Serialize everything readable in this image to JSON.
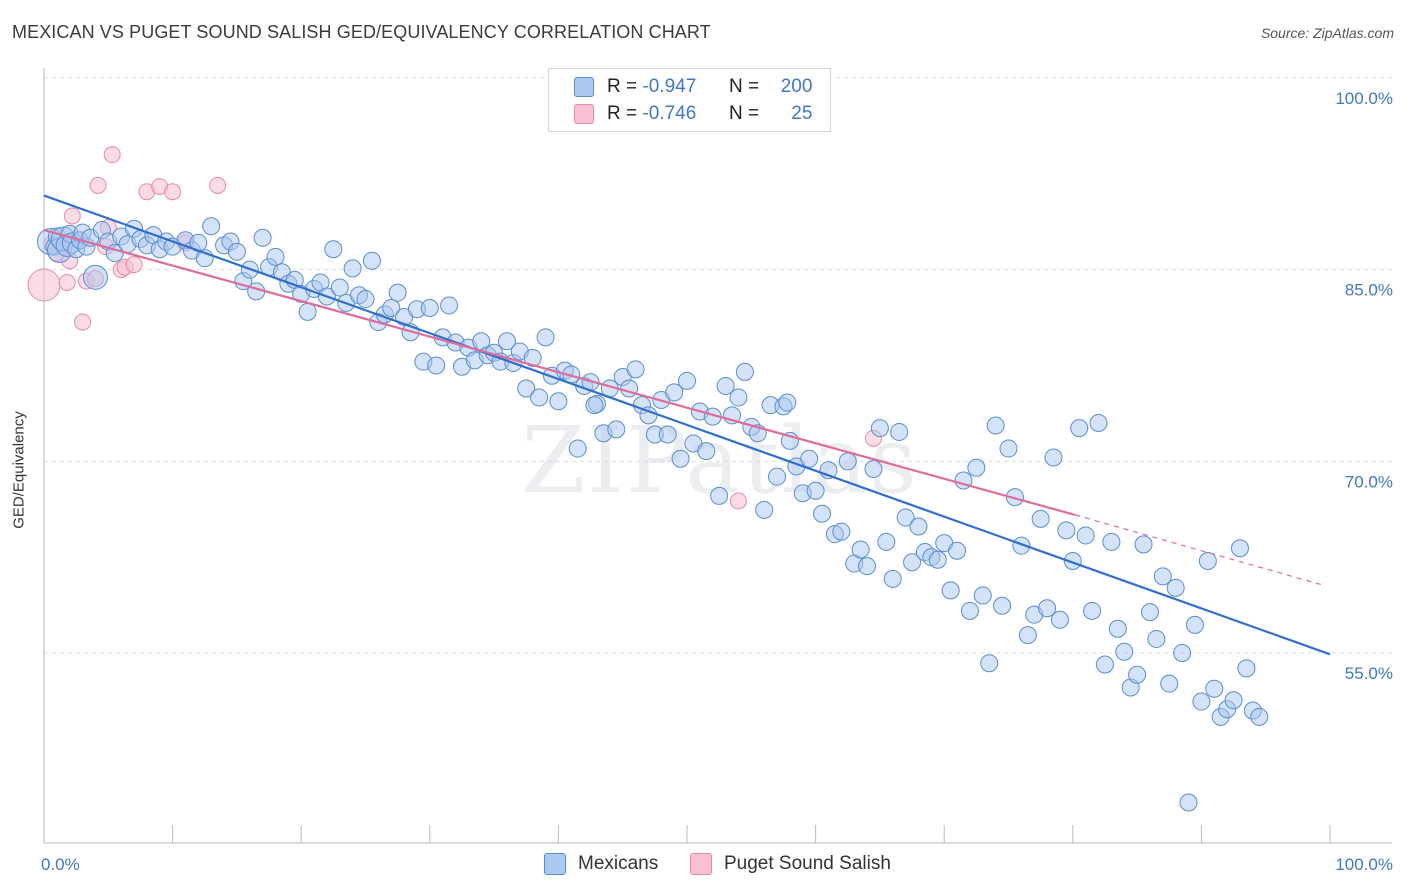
{
  "title": "MEXICAN VS PUGET SOUND SALISH GED/EQUIVALENCY CORRELATION CHART",
  "source": "Source: ZipAtlas.com",
  "watermark": "ZIPatlas",
  "colors": {
    "blue_fill": "#aac8f0",
    "blue_stroke": "#5a8ed6",
    "blue_line": "#2f6fd0",
    "pink_fill": "#f8c0d2",
    "pink_stroke": "#e88aa8",
    "pink_line": "#e06c98",
    "tick_text": "#3f78c8",
    "grid": "#dddddd"
  },
  "legend_top": {
    "rows": [
      {
        "r_label": "R =",
        "r_value": "-0.947",
        "n_label": "N =",
        "n_value": "200",
        "series": "blue"
      },
      {
        "r_label": "R =",
        "r_value": "-0.746",
        "n_label": "N =",
        "n_value": "25",
        "series": "pink"
      }
    ]
  },
  "legend_bottom": {
    "items": [
      {
        "label": "Mexicans",
        "series": "blue"
      },
      {
        "label": "Puget Sound Salish",
        "series": "pink"
      }
    ]
  },
  "chart_data": {
    "type": "scatter",
    "title": "MEXICAN VS PUGET SOUND SALISH GED/EQUIVALENCY CORRELATION CHART",
    "xlabel": "",
    "ylabel": "GED/Equivalency",
    "xlim": [
      0,
      100
    ],
    "ylim": [
      40.5,
      103
    ],
    "x_ticks": [
      {
        "value": 0,
        "label": "0.0%"
      },
      {
        "value": 100,
        "label": "100.0%"
      }
    ],
    "y_ticks": [
      {
        "value": 100,
        "label": "100.0%"
      },
      {
        "value": 85,
        "label": "85.0%"
      },
      {
        "value": 70,
        "label": "70.0%"
      },
      {
        "value": 55,
        "label": "55.0%"
      }
    ],
    "grid": "horizontal dashed",
    "legend_position": "top-center",
    "series": [
      {
        "name": "Mexicans",
        "color": "blue",
        "trend": {
          "x": [
            0,
            100
          ],
          "y": [
            90.8,
            54.9
          ],
          "style": "solid"
        },
        "points": [
          {
            "x": 0.5,
            "y": 87.2
          },
          {
            "x": 0.8,
            "y": 86.8
          },
          {
            "x": 1.0,
            "y": 87.6
          },
          {
            "x": 1.2,
            "y": 86.5
          },
          {
            "x": 1.5,
            "y": 87.4
          },
          {
            "x": 1.8,
            "y": 86.9
          },
          {
            "x": 2.0,
            "y": 87.8
          },
          {
            "x": 2.2,
            "y": 87.1
          },
          {
            "x": 2.5,
            "y": 86.6
          },
          {
            "x": 2.8,
            "y": 87.3
          },
          {
            "x": 3.0,
            "y": 87.9
          },
          {
            "x": 3.3,
            "y": 86.8
          },
          {
            "x": 3.6,
            "y": 87.5
          },
          {
            "x": 4.0,
            "y": 84.4
          },
          {
            "x": 4.5,
            "y": 88.1
          },
          {
            "x": 5.0,
            "y": 87.2
          },
          {
            "x": 5.5,
            "y": 86.3
          },
          {
            "x": 6.0,
            "y": 87.6
          },
          {
            "x": 6.5,
            "y": 87.0
          },
          {
            "x": 7.0,
            "y": 88.2
          },
          {
            "x": 7.5,
            "y": 87.4
          },
          {
            "x": 8.0,
            "y": 86.9
          },
          {
            "x": 8.5,
            "y": 87.7
          },
          {
            "x": 9.0,
            "y": 86.6
          },
          {
            "x": 9.5,
            "y": 87.2
          },
          {
            "x": 10.0,
            "y": 86.8
          },
          {
            "x": 11.0,
            "y": 87.3
          },
          {
            "x": 11.5,
            "y": 86.5
          },
          {
            "x": 12.0,
            "y": 87.1
          },
          {
            "x": 12.5,
            "y": 85.9
          },
          {
            "x": 13.0,
            "y": 88.4
          },
          {
            "x": 14.0,
            "y": 86.9
          },
          {
            "x": 14.5,
            "y": 87.2
          },
          {
            "x": 15.0,
            "y": 86.4
          },
          {
            "x": 15.5,
            "y": 84.1
          },
          {
            "x": 16.0,
            "y": 85.0
          },
          {
            "x": 16.5,
            "y": 83.3
          },
          {
            "x": 17.0,
            "y": 87.5
          },
          {
            "x": 17.5,
            "y": 85.2
          },
          {
            "x": 18.0,
            "y": 86.0
          },
          {
            "x": 18.5,
            "y": 84.8
          },
          {
            "x": 19.0,
            "y": 83.9
          },
          {
            "x": 19.5,
            "y": 84.2
          },
          {
            "x": 20.0,
            "y": 83.1
          },
          {
            "x": 20.5,
            "y": 81.7
          },
          {
            "x": 21.0,
            "y": 83.5
          },
          {
            "x": 21.5,
            "y": 84.0
          },
          {
            "x": 22.0,
            "y": 82.9
          },
          {
            "x": 22.5,
            "y": 86.6
          },
          {
            "x": 23.0,
            "y": 83.6
          },
          {
            "x": 23.5,
            "y": 82.4
          },
          {
            "x": 24.0,
            "y": 85.1
          },
          {
            "x": 24.5,
            "y": 83.0
          },
          {
            "x": 25.0,
            "y": 82.7
          },
          {
            "x": 25.5,
            "y": 85.7
          },
          {
            "x": 26.0,
            "y": 80.9
          },
          {
            "x": 26.5,
            "y": 81.5
          },
          {
            "x": 27.0,
            "y": 82.0
          },
          {
            "x": 27.5,
            "y": 83.2
          },
          {
            "x": 28.0,
            "y": 81.3
          },
          {
            "x": 28.5,
            "y": 80.1
          },
          {
            "x": 29.0,
            "y": 81.9
          },
          {
            "x": 29.5,
            "y": 77.8
          },
          {
            "x": 30.0,
            "y": 82.0
          },
          {
            "x": 30.5,
            "y": 77.5
          },
          {
            "x": 31.0,
            "y": 79.7
          },
          {
            "x": 31.5,
            "y": 82.2
          },
          {
            "x": 32.0,
            "y": 79.3
          },
          {
            "x": 32.5,
            "y": 77.4
          },
          {
            "x": 33.0,
            "y": 78.9
          },
          {
            "x": 33.5,
            "y": 77.9
          },
          {
            "x": 34.0,
            "y": 79.4
          },
          {
            "x": 34.5,
            "y": 78.3
          },
          {
            "x": 35.0,
            "y": 78.5
          },
          {
            "x": 35.5,
            "y": 77.8
          },
          {
            "x": 36.0,
            "y": 79.4
          },
          {
            "x": 36.5,
            "y": 77.7
          },
          {
            "x": 37.0,
            "y": 78.6
          },
          {
            "x": 37.5,
            "y": 75.7
          },
          {
            "x": 38.0,
            "y": 78.1
          },
          {
            "x": 38.5,
            "y": 75.0
          },
          {
            "x": 39.0,
            "y": 79.7
          },
          {
            "x": 39.5,
            "y": 76.7
          },
          {
            "x": 40.0,
            "y": 74.7
          },
          {
            "x": 40.5,
            "y": 77.1
          },
          {
            "x": 41.0,
            "y": 76.8
          },
          {
            "x": 41.5,
            "y": 71.0
          },
          {
            "x": 42.0,
            "y": 75.9
          },
          {
            "x": 42.5,
            "y": 76.2
          },
          {
            "x": 43.0,
            "y": 74.5
          },
          {
            "x": 43.5,
            "y": 72.2
          },
          {
            "x": 44.0,
            "y": 75.7
          },
          {
            "x": 44.5,
            "y": 72.5
          },
          {
            "x": 45.0,
            "y": 76.6
          },
          {
            "x": 45.5,
            "y": 75.7
          },
          {
            "x": 46.0,
            "y": 77.2
          },
          {
            "x": 46.5,
            "y": 74.4
          },
          {
            "x": 47.0,
            "y": 73.6
          },
          {
            "x": 47.5,
            "y": 72.1
          },
          {
            "x": 48.0,
            "y": 74.8
          },
          {
            "x": 48.5,
            "y": 72.1
          },
          {
            "x": 49.0,
            "y": 75.4
          },
          {
            "x": 49.5,
            "y": 70.2
          },
          {
            "x": 50.0,
            "y": 76.3
          },
          {
            "x": 50.5,
            "y": 71.4
          },
          {
            "x": 51.0,
            "y": 73.9
          },
          {
            "x": 51.5,
            "y": 70.8
          },
          {
            "x": 52.0,
            "y": 73.5
          },
          {
            "x": 52.5,
            "y": 67.3
          },
          {
            "x": 53.0,
            "y": 75.9
          },
          {
            "x": 53.5,
            "y": 73.6
          },
          {
            "x": 54.0,
            "y": 75.0
          },
          {
            "x": 54.5,
            "y": 77.0
          },
          {
            "x": 55.0,
            "y": 72.7
          },
          {
            "x": 55.5,
            "y": 72.2
          },
          {
            "x": 56.0,
            "y": 66.2
          },
          {
            "x": 56.5,
            "y": 74.4
          },
          {
            "x": 57.0,
            "y": 68.8
          },
          {
            "x": 57.5,
            "y": 74.3
          },
          {
            "x": 58.0,
            "y": 71.6
          },
          {
            "x": 58.5,
            "y": 69.6
          },
          {
            "x": 59.0,
            "y": 67.5
          },
          {
            "x": 59.5,
            "y": 70.2
          },
          {
            "x": 60.0,
            "y": 67.7
          },
          {
            "x": 60.5,
            "y": 65.9
          },
          {
            "x": 61.0,
            "y": 69.3
          },
          {
            "x": 61.5,
            "y": 64.3
          },
          {
            "x": 62.0,
            "y": 64.5
          },
          {
            "x": 62.5,
            "y": 70.0
          },
          {
            "x": 63.0,
            "y": 62.0
          },
          {
            "x": 63.5,
            "y": 63.1
          },
          {
            "x": 64.0,
            "y": 61.8
          },
          {
            "x": 64.5,
            "y": 69.4
          },
          {
            "x": 65.0,
            "y": 72.6
          },
          {
            "x": 65.5,
            "y": 63.7
          },
          {
            "x": 66.0,
            "y": 60.8
          },
          {
            "x": 66.5,
            "y": 72.3
          },
          {
            "x": 67.0,
            "y": 65.6
          },
          {
            "x": 67.5,
            "y": 62.1
          },
          {
            "x": 68.0,
            "y": 64.9
          },
          {
            "x": 68.5,
            "y": 62.9
          },
          {
            "x": 69.0,
            "y": 62.5
          },
          {
            "x": 69.5,
            "y": 62.3
          },
          {
            "x": 70.0,
            "y": 63.6
          },
          {
            "x": 70.5,
            "y": 59.9
          },
          {
            "x": 71.0,
            "y": 63.0
          },
          {
            "x": 71.5,
            "y": 68.5
          },
          {
            "x": 72.0,
            "y": 58.3
          },
          {
            "x": 72.5,
            "y": 69.5
          },
          {
            "x": 73.0,
            "y": 59.5
          },
          {
            "x": 73.5,
            "y": 54.2
          },
          {
            "x": 74.0,
            "y": 72.8
          },
          {
            "x": 74.5,
            "y": 58.7
          },
          {
            "x": 75.0,
            "y": 71.0
          },
          {
            "x": 75.5,
            "y": 67.2
          },
          {
            "x": 76.0,
            "y": 63.4
          },
          {
            "x": 76.5,
            "y": 56.4
          },
          {
            "x": 77.0,
            "y": 58.0
          },
          {
            "x": 77.5,
            "y": 65.5
          },
          {
            "x": 78.0,
            "y": 58.5
          },
          {
            "x": 78.5,
            "y": 70.3
          },
          {
            "x": 79.0,
            "y": 57.6
          },
          {
            "x": 79.5,
            "y": 64.6
          },
          {
            "x": 80.0,
            "y": 62.2
          },
          {
            "x": 80.5,
            "y": 72.6
          },
          {
            "x": 81.0,
            "y": 64.2
          },
          {
            "x": 81.5,
            "y": 58.3
          },
          {
            "x": 82.0,
            "y": 73.0
          },
          {
            "x": 82.5,
            "y": 54.1
          },
          {
            "x": 83.0,
            "y": 63.7
          },
          {
            "x": 83.5,
            "y": 56.9
          },
          {
            "x": 84.0,
            "y": 55.1
          },
          {
            "x": 84.5,
            "y": 52.3
          },
          {
            "x": 85.0,
            "y": 53.3
          },
          {
            "x": 85.5,
            "y": 63.5
          },
          {
            "x": 86.0,
            "y": 58.2
          },
          {
            "x": 86.5,
            "y": 56.1
          },
          {
            "x": 87.0,
            "y": 61.0
          },
          {
            "x": 87.5,
            "y": 52.6
          },
          {
            "x": 88.0,
            "y": 60.1
          },
          {
            "x": 88.5,
            "y": 55.0
          },
          {
            "x": 89.0,
            "y": 43.3
          },
          {
            "x": 89.5,
            "y": 57.2
          },
          {
            "x": 90.0,
            "y": 51.2
          },
          {
            "x": 90.5,
            "y": 62.2
          },
          {
            "x": 91.0,
            "y": 52.2
          },
          {
            "x": 91.5,
            "y": 50.0
          },
          {
            "x": 92.0,
            "y": 50.6
          },
          {
            "x": 92.5,
            "y": 51.3
          },
          {
            "x": 93.0,
            "y": 63.2
          },
          {
            "x": 93.5,
            "y": 53.8
          },
          {
            "x": 94.0,
            "y": 50.5
          },
          {
            "x": 94.5,
            "y": 50.0
          },
          {
            "x": 57.8,
            "y": 74.6
          },
          {
            "x": 42.8,
            "y": 74.4
          }
        ]
      },
      {
        "name": "Puget Sound Salish",
        "color": "pink",
        "trend": {
          "x": [
            0,
            80.2
          ],
          "y": [
            88.1,
            65.8
          ],
          "style": "solid",
          "dashed_extension_to": {
            "x": 99.5,
            "y": 60.3
          }
        },
        "points": [
          {
            "x": 0.0,
            "y": 83.8
          },
          {
            "x": 0.6,
            "y": 87.0
          },
          {
            "x": 1.0,
            "y": 86.3
          },
          {
            "x": 1.5,
            "y": 86.8
          },
          {
            "x": 1.8,
            "y": 84.0
          },
          {
            "x": 2.0,
            "y": 85.7
          },
          {
            "x": 2.2,
            "y": 89.2
          },
          {
            "x": 2.5,
            "y": 87.4
          },
          {
            "x": 3.0,
            "y": 80.9
          },
          {
            "x": 3.3,
            "y": 84.1
          },
          {
            "x": 4.0,
            "y": 84.3
          },
          {
            "x": 4.2,
            "y": 91.6
          },
          {
            "x": 5.0,
            "y": 88.3
          },
          {
            "x": 5.3,
            "y": 94.0
          },
          {
            "x": 6.0,
            "y": 85.0
          },
          {
            "x": 6.3,
            "y": 85.2
          },
          {
            "x": 7.0,
            "y": 85.4
          },
          {
            "x": 8.0,
            "y": 91.1
          },
          {
            "x": 9.0,
            "y": 91.5
          },
          {
            "x": 10.0,
            "y": 91.1
          },
          {
            "x": 11.0,
            "y": 87.1
          },
          {
            "x": 13.5,
            "y": 91.6
          },
          {
            "x": 54.0,
            "y": 66.9
          },
          {
            "x": 64.5,
            "y": 71.8
          },
          {
            "x": 4.8,
            "y": 86.8
          }
        ]
      }
    ]
  }
}
